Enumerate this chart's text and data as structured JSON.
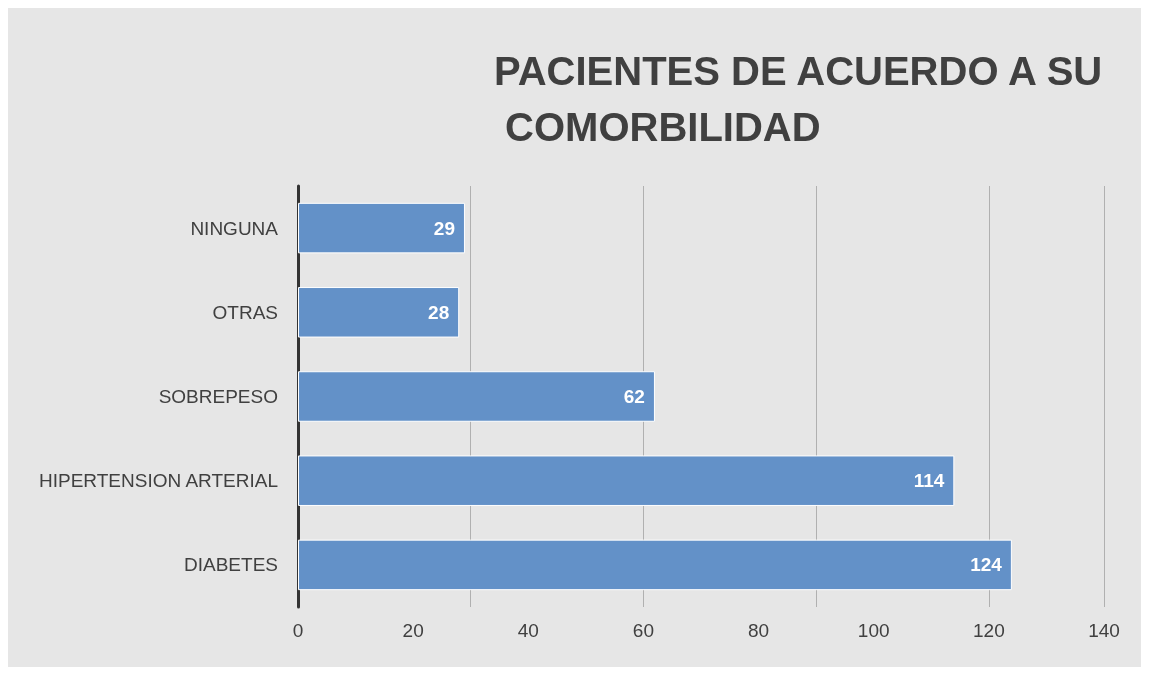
{
  "chart_data": {
    "type": "bar",
    "orientation": "horizontal",
    "title": "PACIENTES DE ACUERDO A SU COMORBILIDAD",
    "categories": [
      "NINGUNA",
      "OTRAS",
      "SOBREPESO",
      "HIPERTENSION ARTERIAL",
      "DIABETES"
    ],
    "values": [
      29,
      28,
      62,
      114,
      124
    ],
    "color": "#6391c8",
    "xlim": [
      0,
      140
    ],
    "xticks": [
      0,
      20,
      40,
      60,
      80,
      100,
      120,
      140
    ],
    "grid": "x",
    "data_labels": true
  }
}
